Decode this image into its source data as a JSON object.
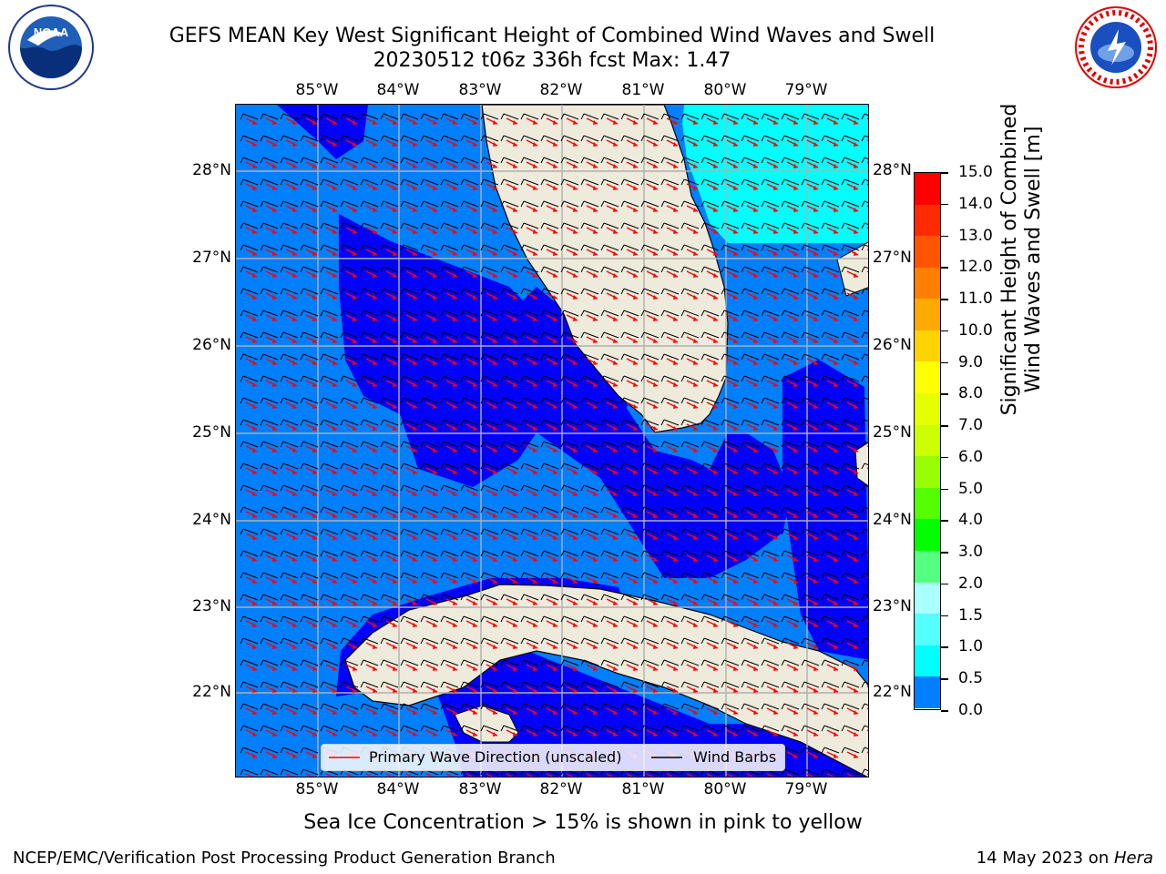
{
  "title_line1": "GEFS MEAN Key West Significant Height of Combined Wind Waves and Swell",
  "title_line2": "20230512 t06z 336h fcst   Max: 1.47",
  "lon_ticks": [
    "85°W",
    "84°W",
    "83°W",
    "82°W",
    "81°W",
    "80°W",
    "79°W"
  ],
  "lat_ticks": [
    "28°N",
    "27°N",
    "26°N",
    "25°N",
    "24°N",
    "23°N",
    "22°N"
  ],
  "legend": {
    "wave_label": "Primary Wave Direction (unscaled)",
    "barb_label": "Wind Barbs",
    "wave_color": "#ff0000",
    "barb_color": "#000000"
  },
  "colorbar": {
    "label_line1": "Significant Height of Combined",
    "label_line2": "Wind Waves and Swell [m]",
    "ticks": [
      "15.0",
      "14.0",
      "13.0",
      "12.0",
      "11.0",
      "10.0",
      "9.0",
      "8.0",
      "7.0",
      "6.0",
      "5.0",
      "4.0",
      "3.0",
      "2.0",
      "1.5",
      "1.0",
      "0.5",
      "0.0"
    ],
    "colors": [
      "#ff0000",
      "#ff2a00",
      "#ff5500",
      "#ff7f00",
      "#ffaa00",
      "#ffd400",
      "#ffff00",
      "#e5ff00",
      "#ccff00",
      "#99ff00",
      "#55ff00",
      "#00ff00",
      "#55ff7f",
      "#aaffff",
      "#55ffff",
      "#00ffff",
      "#007fff",
      "#0000ff"
    ]
  },
  "map_colors": {
    "land": "#eeebdc",
    "deep": "#0000ff",
    "mid": "#007fff",
    "high": "#00ffff",
    "grid": "#b0b0b0"
  },
  "caption": "Sea Ice Concentration > 15% is shown in pink to yellow",
  "footer_left": "NCEP/EMC/Verification Post Processing Product Generation Branch",
  "footer_right_date": "14 May 2023 on ",
  "footer_right_host": "Hera",
  "logos": {
    "left": "NOAA",
    "right": "NATIONAL WEATHER SERVICE"
  }
}
